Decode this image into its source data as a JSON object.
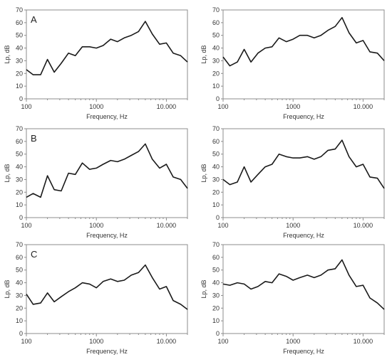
{
  "chart_data": [
    {
      "type": "line",
      "panel_label": "A",
      "xlabel": "Frequency, Hz",
      "ylabel": "Lp, dB",
      "xscale": "log",
      "xlim": [
        100,
        20000
      ],
      "ylim": [
        0,
        70
      ],
      "yticks": [
        0,
        10,
        20,
        30,
        40,
        50,
        60,
        70
      ],
      "xtick_values": [
        100,
        1000,
        10000
      ],
      "xtick_labels": [
        "100",
        "1000",
        "10.000"
      ],
      "line_color": "#1a1a1a",
      "x": [
        100,
        125,
        160,
        200,
        250,
        315,
        400,
        500,
        630,
        800,
        1000,
        1250,
        1600,
        2000,
        2500,
        3150,
        4000,
        5000,
        6300,
        8000,
        10000,
        12500,
        16000,
        20000
      ],
      "y": [
        23,
        19,
        19,
        31,
        21,
        28,
        36,
        34,
        41,
        41,
        40,
        42,
        47,
        45,
        48,
        50,
        53,
        61,
        51,
        43,
        44,
        36,
        34,
        29
      ]
    },
    {
      "type": "line",
      "panel_label": "",
      "xlabel": "Frequency, Hz",
      "ylabel": "Lp, dB",
      "xscale": "log",
      "xlim": [
        100,
        20000
      ],
      "ylim": [
        0,
        70
      ],
      "yticks": [
        0,
        10,
        20,
        30,
        40,
        50,
        60,
        70
      ],
      "xtick_values": [
        100,
        1000,
        10000
      ],
      "xtick_labels": [
        "100",
        "1000",
        "10.000"
      ],
      "line_color": "#1a1a1a",
      "x": [
        100,
        125,
        160,
        200,
        250,
        315,
        400,
        500,
        630,
        800,
        1000,
        1250,
        1600,
        2000,
        2500,
        3150,
        4000,
        5000,
        6300,
        8000,
        10000,
        12500,
        16000,
        20000
      ],
      "y": [
        33,
        26,
        29,
        39,
        29,
        36,
        40,
        41,
        48,
        45,
        47,
        50,
        50,
        48,
        50,
        54,
        57,
        64,
        52,
        44,
        46,
        37,
        36,
        30
      ]
    },
    {
      "type": "line",
      "panel_label": "B",
      "xlabel": "Frequency, Hz",
      "ylabel": "Lp, dB",
      "xscale": "log",
      "xlim": [
        100,
        20000
      ],
      "ylim": [
        0,
        70
      ],
      "yticks": [
        0,
        10,
        20,
        30,
        40,
        50,
        60,
        70
      ],
      "xtick_values": [
        100,
        1000,
        10000
      ],
      "xtick_labels": [
        "100",
        "1000",
        "10.000"
      ],
      "line_color": "#1a1a1a",
      "x": [
        100,
        125,
        160,
        200,
        250,
        315,
        400,
        500,
        630,
        800,
        1000,
        1250,
        1600,
        2000,
        2500,
        3150,
        4000,
        5000,
        6300,
        8000,
        10000,
        12500,
        16000,
        20000
      ],
      "y": [
        16,
        19,
        16,
        33,
        22,
        21,
        35,
        34,
        43,
        38,
        39,
        42,
        45,
        44,
        46,
        49,
        52,
        58,
        46,
        39,
        42,
        32,
        30,
        23
      ]
    },
    {
      "type": "line",
      "panel_label": "",
      "xlabel": "Frequency, Hz",
      "ylabel": "Lp, dB",
      "xscale": "log",
      "xlim": [
        100,
        20000
      ],
      "ylim": [
        0,
        70
      ],
      "yticks": [
        0,
        10,
        20,
        30,
        40,
        50,
        60,
        70
      ],
      "xtick_values": [
        100,
        1000,
        10000
      ],
      "xtick_labels": [
        "100",
        "1000",
        "10.000"
      ],
      "line_color": "#1a1a1a",
      "x": [
        100,
        125,
        160,
        200,
        250,
        315,
        400,
        500,
        630,
        800,
        1000,
        1250,
        1600,
        2000,
        2500,
        3150,
        4000,
        5000,
        6300,
        8000,
        10000,
        12500,
        16000,
        20000
      ],
      "y": [
        30,
        26,
        28,
        40,
        28,
        34,
        40,
        42,
        50,
        48,
        47,
        47,
        48,
        46,
        48,
        53,
        54,
        61,
        48,
        40,
        42,
        32,
        31,
        23
      ]
    },
    {
      "type": "line",
      "panel_label": "C",
      "xlabel": "Frequency, Hz",
      "ylabel": "Lp, dB",
      "xscale": "log",
      "xlim": [
        100,
        20000
      ],
      "ylim": [
        0,
        70
      ],
      "yticks": [
        0,
        10,
        20,
        30,
        40,
        50,
        60,
        70
      ],
      "xtick_values": [
        100,
        1000,
        10000
      ],
      "xtick_labels": [
        "100",
        "1000",
        "10.000"
      ],
      "line_color": "#1a1a1a",
      "x": [
        100,
        125,
        160,
        200,
        250,
        315,
        400,
        500,
        630,
        800,
        1000,
        1250,
        1600,
        2000,
        2500,
        3150,
        4000,
        5000,
        6300,
        8000,
        10000,
        12500,
        16000,
        20000
      ],
      "y": [
        31,
        23,
        24,
        32,
        25,
        29,
        33,
        36,
        40,
        39,
        36,
        41,
        43,
        41,
        42,
        46,
        48,
        54,
        44,
        35,
        37,
        26,
        23,
        19
      ]
    },
    {
      "type": "line",
      "panel_label": "",
      "xlabel": "Frequency, Hz",
      "ylabel": "Lp, dB",
      "xscale": "log",
      "xlim": [
        100,
        20000
      ],
      "ylim": [
        0,
        70
      ],
      "yticks": [
        0,
        10,
        20,
        30,
        40,
        50,
        60,
        70
      ],
      "xtick_values": [
        100,
        1000,
        10000
      ],
      "xtick_labels": [
        "100",
        "1000",
        "10.000"
      ],
      "line_color": "#1a1a1a",
      "x": [
        100,
        125,
        160,
        200,
        250,
        315,
        400,
        500,
        630,
        800,
        1000,
        1250,
        1600,
        2000,
        2500,
        3150,
        4000,
        5000,
        6300,
        8000,
        10000,
        12500,
        16000,
        20000
      ],
      "y": [
        39,
        38,
        40,
        39,
        35,
        37,
        41,
        40,
        47,
        45,
        42,
        44,
        46,
        44,
        46,
        50,
        51,
        58,
        46,
        37,
        38,
        28,
        24,
        19
      ]
    }
  ]
}
